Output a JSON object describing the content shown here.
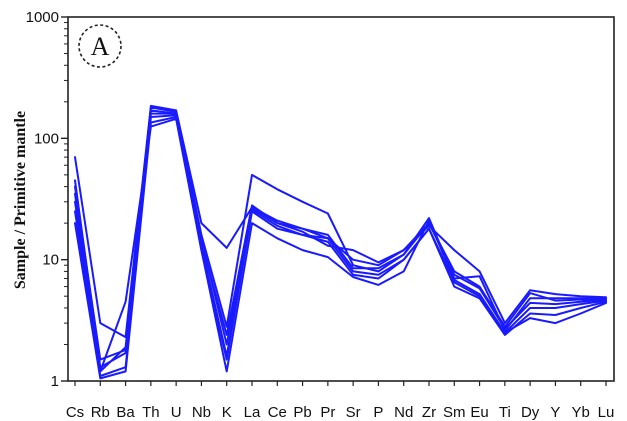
{
  "chart_data": {
    "type": "line",
    "badge": "A",
    "ylabel": "Sample / Primitive mantle",
    "xlabel": "",
    "yscale": "log",
    "ylim": [
      1,
      1000
    ],
    "ytick_labels": [
      "1",
      "10",
      "100",
      "1000"
    ],
    "ytick_values": [
      1,
      10,
      100,
      1000
    ],
    "categories": [
      "Cs",
      "Rb",
      "Ba",
      "Th",
      "U",
      "Nb",
      "K",
      "La",
      "Ce",
      "Pb",
      "Pr",
      "Sr",
      "P",
      "Nd",
      "Zr",
      "Sm",
      "Eu",
      "Ti",
      "Dy",
      "Y",
      "Yb",
      "Lu"
    ],
    "line_color": "#1a1aff",
    "series": [
      {
        "values": [
          70,
          3.0,
          2.3,
          185,
          170,
          20,
          12.5,
          27,
          20,
          17,
          13,
          12,
          9.5,
          12,
          19,
          12,
          8,
          3.0,
          5.6,
          5.2,
          5.0,
          4.9
        ]
      },
      {
        "values": [
          40,
          1.5,
          1.8,
          180,
          165,
          16,
          2.8,
          50,
          38,
          30,
          24,
          9,
          8,
          11,
          22,
          7,
          7.3,
          2.6,
          4.8,
          4.8,
          4.8,
          4.8
        ]
      },
      {
        "values": [
          35,
          1.2,
          1.9,
          170,
          160,
          14,
          2.4,
          28,
          20,
          18,
          15,
          10,
          9,
          12,
          20,
          8,
          6,
          2.8,
          5.3,
          4.6,
          4.7,
          4.7
        ]
      },
      {
        "values": [
          25,
          1.1,
          1.3,
          150,
          155,
          13,
          1.6,
          26,
          19,
          16,
          15,
          8,
          7.5,
          10,
          18,
          6.5,
          5,
          2.5,
          4.0,
          4.0,
          4.3,
          4.6
        ]
      },
      {
        "values": [
          20,
          1.05,
          1.2,
          135,
          150,
          12,
          1.5,
          25,
          18,
          16,
          14,
          7.5,
          7,
          10,
          18,
          6,
          4.8,
          2.4,
          3.6,
          3.5,
          4.0,
          4.5
        ]
      },
      {
        "values": [
          30,
          1.2,
          4.5,
          125,
          145,
          12,
          1.2,
          20,
          15,
          12,
          10.5,
          7.2,
          6.2,
          8,
          21,
          6.8,
          5.2,
          2.5,
          3.3,
          3.0,
          3.6,
          4.4
        ]
      },
      {
        "values": [
          45,
          1.3,
          1.7,
          160,
          160,
          15,
          2.0,
          27,
          21,
          18,
          16,
          8.5,
          8.5,
          11,
          20,
          7.5,
          5.8,
          2.7,
          4.4,
          4.3,
          4.5,
          4.7
        ]
      }
    ]
  }
}
